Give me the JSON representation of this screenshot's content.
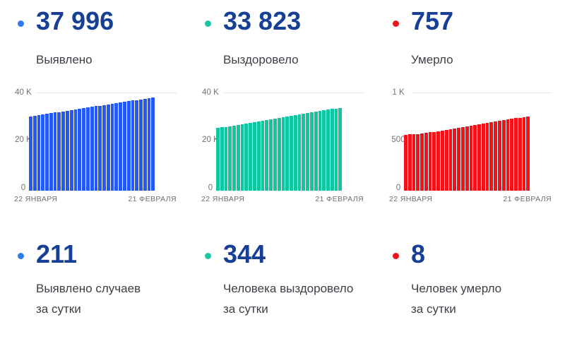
{
  "colors": {
    "number_text": "#173f96",
    "label_text": "#3c4047",
    "axis_text": "#707070",
    "gridline": "#e2e2e2",
    "background": "#ffffff"
  },
  "stats": {
    "detected": {
      "dot_color": "#2d7bf4",
      "total": "37 996",
      "total_label": "Выявлено",
      "daily": "211",
      "daily_label": [
        "Выявлено случаев",
        "за сутки"
      ]
    },
    "recovered": {
      "dot_color": "#1dc4a3",
      "total": "33 823",
      "total_label": "Выздоровело",
      "daily": "344",
      "daily_label": [
        "Человека выздоровело",
        "за сутки"
      ]
    },
    "died": {
      "dot_color": "#e8151c",
      "total": "757",
      "total_label": "Умерло",
      "daily": "8",
      "daily_label": [
        "Человек умерло",
        "за сутки"
      ]
    }
  },
  "chart_data": [
    {
      "type": "bar",
      "title": "Выявлено",
      "color": "#2659f2",
      "x_start_label": "22 ЯНВАРЯ",
      "x_end_label": "21 ФЕВРАЛЯ",
      "days": 31,
      "ylim": [
        0,
        40000
      ],
      "grid": "top-line-only",
      "y_ticks": [
        {
          "value": 40000,
          "label": "40 K"
        },
        {
          "value": 20000,
          "label": "20 K"
        },
        {
          "value": 0,
          "label": "0"
        }
      ],
      "values": [
        30300,
        30557,
        30813,
        31070,
        31326,
        31583,
        31839,
        32096,
        32352,
        32609,
        32865,
        33122,
        33378,
        33635,
        33891,
        34148,
        34404,
        34661,
        34917,
        35174,
        35430,
        35687,
        35943,
        36200,
        36456,
        36713,
        36969,
        37270,
        37530,
        37785,
        37996
      ]
    },
    {
      "type": "bar",
      "title": "Выздоровело",
      "color": "#10c6a1",
      "x_start_label": "22 ЯНВАРЯ",
      "x_end_label": "21 ФЕВРАЛЯ",
      "days": 31,
      "ylim": [
        0,
        40000
      ],
      "grid": "top-line-only",
      "y_ticks": [
        {
          "value": 40000,
          "label": "40 K"
        },
        {
          "value": 20000,
          "label": "20 K"
        },
        {
          "value": 0,
          "label": "0"
        }
      ],
      "values": [
        25500,
        25777,
        26055,
        26332,
        26610,
        26887,
        27165,
        27442,
        27720,
        27997,
        28275,
        28552,
        28830,
        29107,
        29385,
        29662,
        29940,
        30217,
        30495,
        30772,
        31050,
        31327,
        31605,
        31882,
        32160,
        32437,
        32715,
        32992,
        33270,
        33479,
        33823
      ]
    },
    {
      "type": "bar",
      "title": "Умерло",
      "color": "#f2121a",
      "x_start_label": "22 ЯНВАРЯ",
      "x_end_label": "21 ФЕВРАЛЯ",
      "days": 31,
      "ylim": [
        0,
        1000
      ],
      "grid": "top-line-only",
      "y_ticks": [
        {
          "value": 1000,
          "label": "1 K"
        },
        {
          "value": 500,
          "label": "500"
        },
        {
          "value": 0,
          "label": "0"
        }
      ],
      "values": [
        570,
        573,
        576,
        579,
        583,
        588,
        594,
        600,
        607,
        614,
        621,
        628,
        635,
        642,
        649,
        656,
        663,
        670,
        677,
        684,
        691,
        698,
        705,
        712,
        719,
        726,
        733,
        739,
        744,
        749,
        757
      ]
    }
  ]
}
